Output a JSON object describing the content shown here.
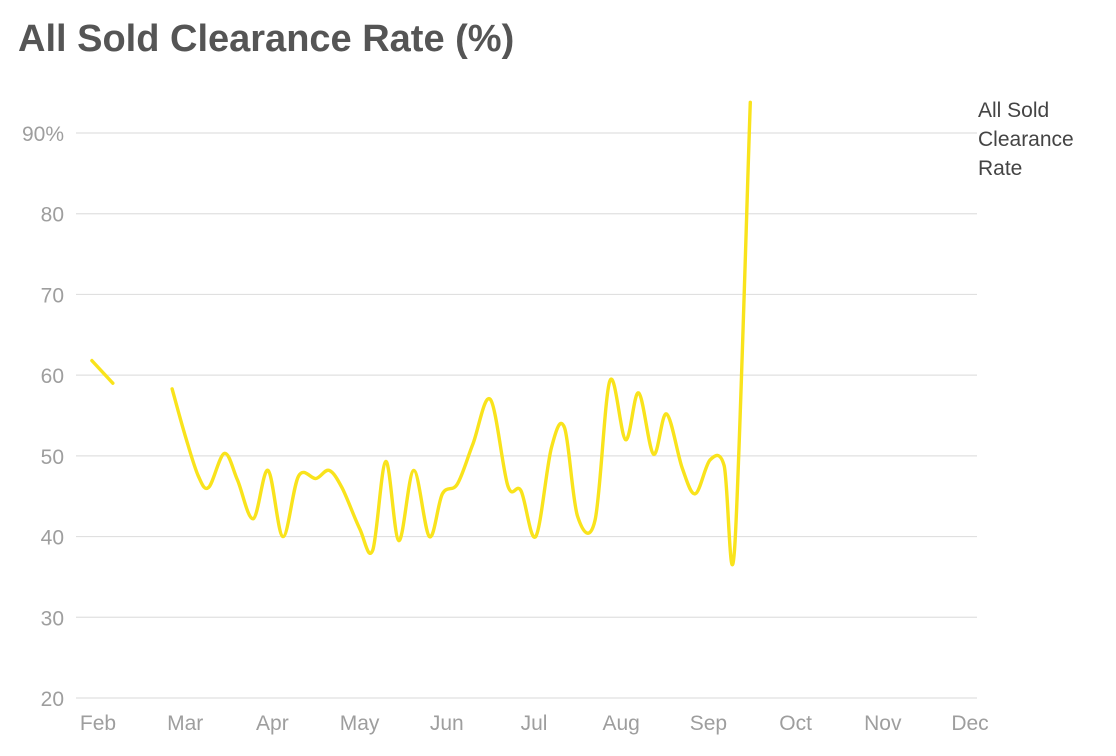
{
  "chart_data": {
    "type": "line",
    "title": "All Sold Clearance Rate (%)",
    "x_tick_labels": [
      "Feb",
      "Mar",
      "Apr",
      "May",
      "Jun",
      "Jul",
      "Aug",
      "Sep",
      "Oct",
      "Nov",
      "Dec"
    ],
    "y_tick_labels": [
      "20",
      "30",
      "40",
      "50",
      "60",
      "70",
      "80",
      "90%"
    ],
    "y_ticks": [
      20,
      30,
      40,
      50,
      60,
      70,
      80,
      90
    ],
    "ylim": [
      20,
      96
    ],
    "xlim": [
      0,
      10
    ],
    "grid": "horizontal",
    "colors": {
      "series": "#f9e31c"
    },
    "series": [
      {
        "name": "All Sold Clearance Rate",
        "segments": [
          [
            [
              -0.07,
              61.8
            ],
            [
              0.17,
              59.0
            ]
          ],
          [
            [
              0.85,
              58.3
            ],
            [
              1.0,
              52.5
            ],
            [
              1.15,
              47.5
            ],
            [
              1.27,
              46.1
            ],
            [
              1.45,
              50.3
            ],
            [
              1.6,
              47.0
            ],
            [
              1.78,
              42.2
            ],
            [
              1.95,
              48.2
            ],
            [
              2.12,
              40.0
            ],
            [
              2.3,
              47.5
            ],
            [
              2.5,
              47.2
            ],
            [
              2.65,
              48.2
            ],
            [
              2.8,
              46.0
            ],
            [
              3.0,
              41.0
            ],
            [
              3.15,
              38.3
            ],
            [
              3.3,
              49.3
            ],
            [
              3.45,
              39.5
            ],
            [
              3.62,
              48.2
            ],
            [
              3.8,
              40.0
            ],
            [
              3.95,
              45.3
            ],
            [
              4.12,
              46.5
            ],
            [
              4.3,
              51.5
            ],
            [
              4.5,
              57.0
            ],
            [
              4.7,
              46.3
            ],
            [
              4.85,
              45.7
            ],
            [
              5.02,
              40.0
            ],
            [
              5.2,
              51.0
            ],
            [
              5.35,
              53.5
            ],
            [
              5.5,
              42.5
            ],
            [
              5.7,
              42.0
            ],
            [
              5.87,
              59.3
            ],
            [
              6.05,
              52.0
            ],
            [
              6.2,
              57.8
            ],
            [
              6.37,
              50.2
            ],
            [
              6.52,
              55.2
            ],
            [
              6.7,
              48.5
            ],
            [
              6.85,
              45.3
            ],
            [
              7.02,
              49.5
            ],
            [
              7.18,
              48.8
            ],
            [
              7.3,
              38.5
            ],
            [
              7.48,
              93.8
            ]
          ]
        ]
      }
    ]
  }
}
